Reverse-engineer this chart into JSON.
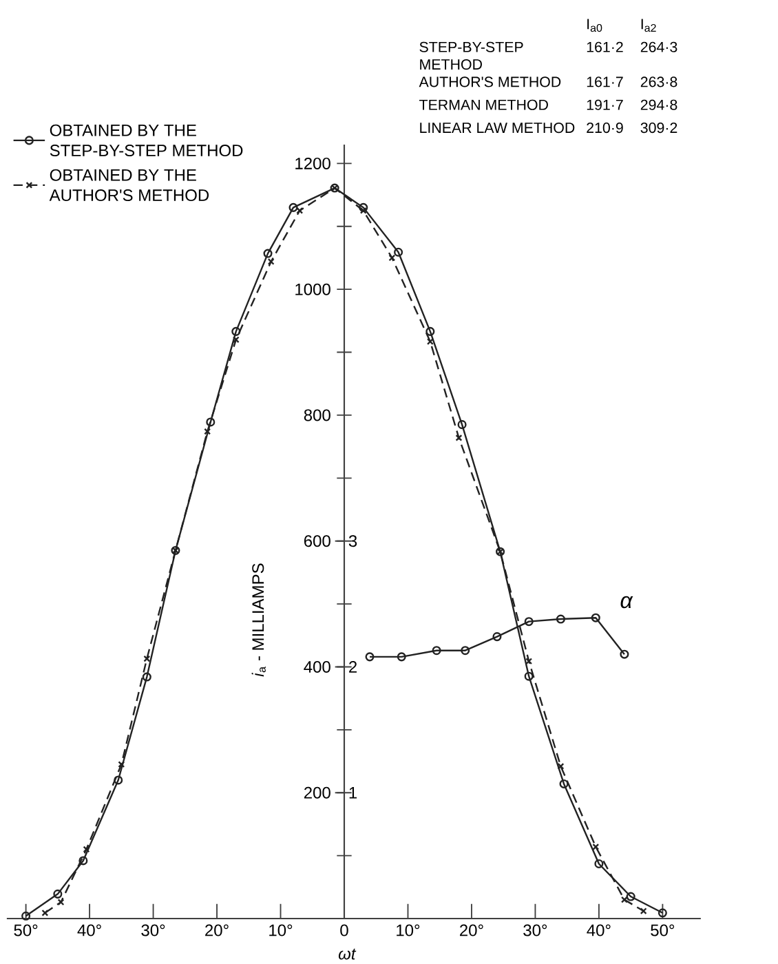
{
  "chart_data": {
    "type": "line",
    "xlabel": "ωt",
    "ylabel": "*i*$_{a}$ - MILLIAMPS",
    "xlim": [
      -53,
      56
    ],
    "ylim": [
      0,
      1230
    ],
    "y2lim": [
      0,
      6.15
    ],
    "xticks": [
      {
        "value": -50,
        "label": "50°"
      },
      {
        "value": -40,
        "label": "40°"
      },
      {
        "value": -30,
        "label": "30°"
      },
      {
        "value": -20,
        "label": "20°"
      },
      {
        "value": -10,
        "label": "10°"
      },
      0,
      {
        "value": 10,
        "label": "10°"
      },
      {
        "value": 20,
        "label": "20°"
      },
      {
        "value": 30,
        "label": "30°"
      },
      {
        "value": 40,
        "label": "40°"
      },
      {
        "value": 50,
        "label": "50°"
      }
    ],
    "yticks": [
      {
        "value": 100,
        "label": null
      },
      200,
      {
        "value": 300,
        "label": null
      },
      400,
      {
        "value": 500,
        "label": null
      },
      600,
      {
        "value": 700,
        "label": null
      },
      800,
      {
        "value": 900,
        "label": null
      },
      1000,
      {
        "value": 1100,
        "label": null
      },
      1200
    ],
    "y2ticks": [
      1,
      2,
      3
    ],
    "legend": "top left",
    "series": [
      {
        "name": "OBTAINED BY THE STEP-BY-STEP METHOD",
        "color": "#222222",
        "marker": "circle",
        "line_style": "solid",
        "x": [
          -50,
          -45,
          -41,
          -35.5,
          -31,
          -26.5,
          -21,
          -17,
          -12,
          -8,
          -1.5,
          3,
          8.5,
          13.5,
          18.5,
          24.5,
          29,
          34.5,
          40,
          45,
          50
        ],
        "values": [
          4,
          39,
          92,
          220,
          384,
          585,
          789,
          933,
          1057,
          1130,
          1161,
          1130,
          1059,
          933,
          785,
          583,
          385,
          214,
          87,
          35,
          9
        ]
      },
      {
        "name": "OBTAINED BY THE AUTHOR'S METHOD",
        "color": "#222222",
        "marker": "cross",
        "line_style": "dashed",
        "x": [
          -47,
          -44.5,
          -40.5,
          -35,
          -31,
          -26.5,
          -21.5,
          -17,
          -11.5,
          -7,
          -1.5,
          3,
          7.5,
          13.5,
          18,
          24.5,
          29,
          34,
          39.5,
          44,
          47
        ],
        "values": [
          9,
          26,
          110,
          245,
          413,
          585,
          774,
          920,
          1044,
          1125,
          1161,
          1125,
          1050,
          917,
          764,
          583,
          409,
          242,
          114,
          30,
          12
        ]
      },
      {
        "name": "α",
        "color": "#222222",
        "marker": "circle",
        "line_style": "solid",
        "axis": "y2",
        "x": [
          4,
          9,
          14.5,
          19,
          24,
          29,
          34,
          39.5,
          44
        ],
        "values": [
          2.08,
          2.08,
          2.13,
          2.13,
          2.24,
          2.36,
          2.38,
          2.39,
          2.1
        ]
      }
    ],
    "annotations": [
      "I$_{a0}$",
      "I$_{a2}$",
      "STEP-BY-STEP METHOD",
      "161·2",
      "264·3",
      "AUTHOR'S METHOD",
      "161·7",
      "263·8",
      "TERMAN METHOD",
      "191·7",
      "294·8",
      "LINEAR LAW METHOD",
      "210·9",
      "309·2"
    ]
  }
}
